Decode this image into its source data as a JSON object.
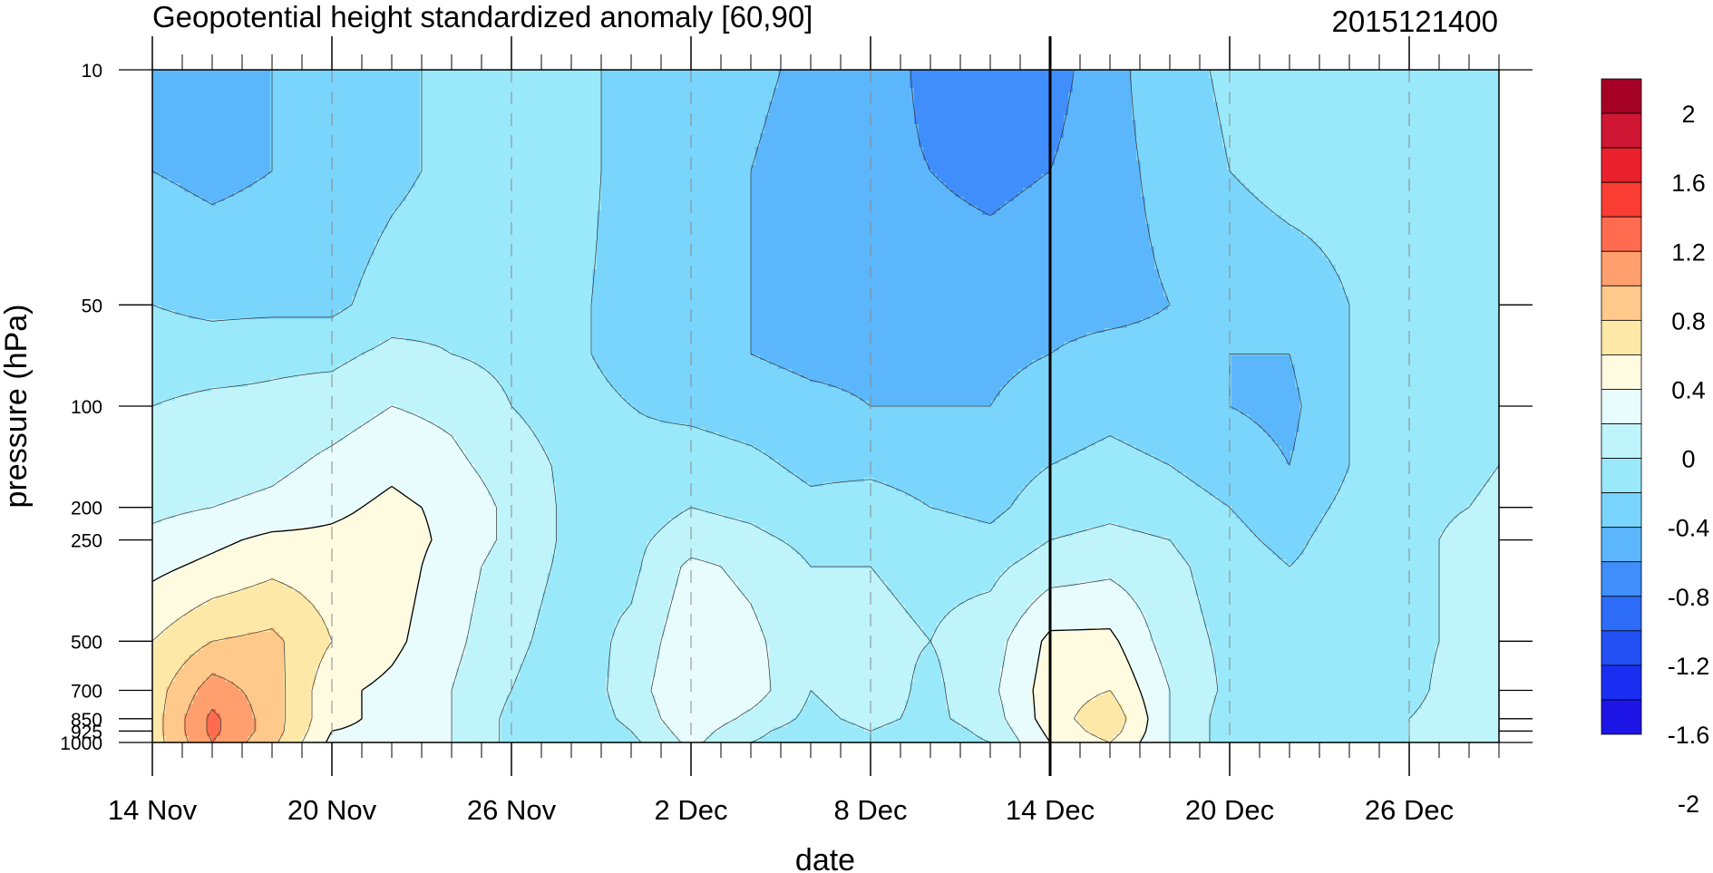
{
  "chart_data": {
    "type": "heatmap",
    "title": "Geopotential height standardized anomaly [60,90]",
    "stamp": "2015121400",
    "xlabel": "date",
    "ylabel": "pressure (hPa)",
    "x_tick_labels": [
      "14 Nov",
      "20 Nov",
      "26 Nov",
      "2 Dec",
      "8 Dec",
      "14 Dec",
      "20 Dec",
      "26 Dec"
    ],
    "x_tick_days": [
      0,
      6,
      12,
      18,
      24,
      30,
      36,
      42
    ],
    "xlim_days": [
      0,
      45
    ],
    "marker_day": 30,
    "y_tick_labels": [
      "10",
      "50",
      "100",
      "200",
      "250",
      "500",
      "700",
      "850",
      "925",
      "1000"
    ],
    "y_tick_values": [
      10,
      50,
      100,
      200,
      250,
      500,
      700,
      850,
      925,
      1000
    ],
    "y_scale": "log",
    "ylim": [
      10,
      1000
    ],
    "colorbar": {
      "labels": [
        "2",
        "1.6",
        "1.2",
        "0.8",
        "0.4",
        "0",
        "-0.4",
        "-0.8",
        "-1.2",
        "-1.6",
        "-2"
      ],
      "colors": [
        "#a50026",
        "#cf1733",
        "#e8212c",
        "#f93d32",
        "#fe6b4e",
        "#fe9f6d",
        "#fec98a",
        "#fee8a8",
        "#fffbe0",
        "#e8fcfd",
        "#bff4fb",
        "#9ae9fb",
        "#7ad5fc",
        "#5cb6fb",
        "#3f8efb",
        "#2d6cf8",
        "#2250f5",
        "#1a2ef2",
        "#1d14e6"
      ]
    },
    "levels": [
      10,
      20,
      50,
      70,
      100,
      150,
      200,
      250,
      300,
      500,
      700,
      850,
      925,
      1000
    ],
    "days": [
      0,
      2,
      4,
      6,
      8,
      10,
      12,
      14,
      16,
      18,
      20,
      22,
      24,
      26,
      28,
      30,
      32,
      34,
      36,
      38,
      40,
      42,
      44,
      45
    ],
    "values": [
      [
        -0.85,
        -0.85,
        -0.8,
        -0.75,
        -0.7,
        -0.5,
        -0.45,
        -0.55,
        -0.65,
        -0.65,
        -0.75,
        -0.85,
        -0.9,
        -1.05,
        -1.15,
        -1.1,
        -0.85,
        -0.7,
        -0.55,
        -0.5,
        -0.5,
        -0.5,
        -0.5,
        -0.5
      ],
      [
        -0.8,
        -0.85,
        -0.8,
        -0.75,
        -0.65,
        -0.55,
        -0.45,
        -0.5,
        -0.7,
        -0.75,
        -0.8,
        -0.9,
        -0.95,
        -1.0,
        -1.05,
        -1.0,
        -0.85,
        -0.75,
        -0.6,
        -0.5,
        -0.5,
        -0.5,
        -0.5,
        -0.5
      ],
      [
        -0.6,
        -0.65,
        -0.65,
        -0.65,
        -0.5,
        -0.45,
        -0.45,
        -0.55,
        -0.7,
        -0.75,
        -0.8,
        -0.85,
        -0.85,
        -0.9,
        -0.9,
        -0.85,
        -0.85,
        -0.8,
        -0.8,
        -0.75,
        -0.6,
        -0.5,
        -0.5,
        -0.5
      ],
      [
        -0.5,
        -0.5,
        -0.45,
        -0.45,
        -0.35,
        -0.4,
        -0.45,
        -0.55,
        -0.7,
        -0.75,
        -0.8,
        -0.85,
        -0.85,
        -0.85,
        -0.85,
        -0.8,
        -0.75,
        -0.75,
        -0.8,
        -0.8,
        -0.6,
        -0.5,
        -0.45,
        -0.45
      ],
      [
        -0.4,
        -0.35,
        -0.35,
        -0.3,
        -0.2,
        -0.25,
        -0.4,
        -0.5,
        -0.6,
        -0.65,
        -0.7,
        -0.75,
        -0.8,
        -0.8,
        -0.8,
        -0.7,
        -0.65,
        -0.7,
        -0.8,
        -0.85,
        -0.6,
        -0.5,
        -0.45,
        -0.45
      ],
      [
        -0.35,
        -0.3,
        -0.25,
        -0.15,
        -0.05,
        -0.15,
        -0.3,
        -0.45,
        -0.55,
        -0.5,
        -0.55,
        -0.65,
        -0.65,
        -0.7,
        -0.7,
        -0.6,
        -0.55,
        -0.6,
        -0.7,
        -0.8,
        -0.6,
        -0.5,
        -0.45,
        -0.4
      ],
      [
        -0.25,
        -0.2,
        -0.15,
        -0.05,
        0.05,
        -0.05,
        -0.25,
        -0.45,
        -0.5,
        -0.4,
        -0.45,
        -0.55,
        -0.5,
        -0.6,
        -0.65,
        -0.5,
        -0.45,
        -0.5,
        -0.6,
        -0.7,
        -0.55,
        -0.45,
        -0.4,
        -0.35
      ],
      [
        -0.15,
        -0.05,
        0.05,
        0.05,
        0.1,
        -0.05,
        -0.25,
        -0.45,
        -0.45,
        -0.3,
        -0.35,
        -0.45,
        -0.45,
        -0.5,
        -0.55,
        -0.4,
        -0.35,
        -0.4,
        -0.55,
        -0.65,
        -0.5,
        -0.45,
        -0.35,
        -0.3
      ],
      [
        -0.05,
        0.05,
        0.15,
        0.1,
        0.1,
        -0.1,
        -0.3,
        -0.45,
        -0.45,
        -0.15,
        -0.25,
        -0.4,
        -0.4,
        -0.45,
        -0.45,
        -0.3,
        -0.25,
        -0.35,
        -0.5,
        -0.6,
        -0.5,
        -0.45,
        -0.35,
        -0.3
      ],
      [
        0.2,
        0.4,
        0.45,
        0.2,
        0.05,
        -0.15,
        -0.35,
        -0.5,
        -0.35,
        -0.05,
        -0.15,
        -0.35,
        -0.35,
        -0.4,
        -0.3,
        0.05,
        0.05,
        -0.3,
        -0.45,
        -0.55,
        -0.5,
        -0.45,
        -0.35,
        -0.3
      ],
      [
        0.3,
        0.7,
        0.5,
        0.05,
        -0.05,
        -0.2,
        -0.4,
        -0.55,
        -0.3,
        0.0,
        -0.1,
        -0.4,
        -0.3,
        -0.45,
        -0.25,
        0.1,
        0.2,
        -0.2,
        -0.45,
        -0.55,
        -0.5,
        -0.45,
        -0.3,
        -0.3
      ],
      [
        0.3,
        0.85,
        0.5,
        0.05,
        -0.05,
        -0.2,
        -0.45,
        -0.55,
        -0.35,
        -0.05,
        -0.25,
        -0.45,
        -0.35,
        -0.45,
        -0.3,
        0.1,
        0.35,
        -0.2,
        -0.5,
        -0.55,
        -0.5,
        -0.4,
        -0.3,
        -0.3
      ],
      [
        0.3,
        0.85,
        0.5,
        0.0,
        -0.05,
        -0.2,
        -0.45,
        -0.6,
        -0.4,
        -0.1,
        -0.35,
        -0.5,
        -0.4,
        -0.5,
        -0.35,
        0.05,
        0.3,
        -0.2,
        -0.5,
        -0.55,
        -0.5,
        -0.4,
        -0.3,
        -0.3
      ],
      [
        0.3,
        0.8,
        0.45,
        -0.05,
        -0.05,
        -0.2,
        -0.45,
        -0.6,
        -0.45,
        -0.15,
        -0.4,
        -0.5,
        -0.4,
        -0.5,
        -0.4,
        0.0,
        0.2,
        -0.2,
        -0.5,
        -0.55,
        -0.5,
        -0.4,
        -0.3,
        -0.3
      ]
    ],
    "thresholds": [
      -2,
      -1.8,
      -1.6,
      -1.4,
      -1.2,
      -1.0,
      -0.8,
      -0.6,
      -0.4,
      -0.2,
      0,
      0.2,
      0.4,
      0.6,
      0.8,
      1.0,
      1.2,
      1.4,
      1.6,
      1.8,
      2.0
    ],
    "fill_colors": [
      "#1d14e6",
      "#1a2ef2",
      "#2250f5",
      "#2d6cf8",
      "#3f8efb",
      "#5cb6fb",
      "#7ad5fc",
      "#9ae9fb",
      "#bff4fb",
      "#e8fcfd",
      "#fffbe0",
      "#fee8a8",
      "#fec98a",
      "#fe9f6d",
      "#fe6b4e",
      "#f93d32",
      "#e8212c",
      "#cf1733",
      "#a50026"
    ]
  }
}
